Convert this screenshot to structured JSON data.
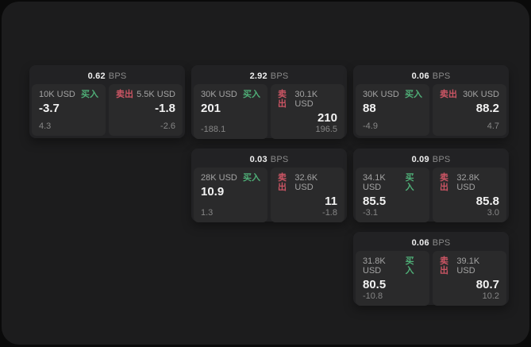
{
  "app": {
    "background": "#0a0a0a",
    "panel_background": "#1c1c1d",
    "card_background": "#222224",
    "tile_background": "#2a2a2b"
  },
  "colors": {
    "buy_green": "#4fae77",
    "sell_red": "#cb5564",
    "price_text": "#f2f2f2",
    "muted_text": "#a3a3a3"
  },
  "labels": {
    "bps_unit": "BPS",
    "buy": "买入",
    "sell": "卖出"
  },
  "cards": [
    {
      "bps": "0.62",
      "buy_amount": "10K USD",
      "buy_price": "-3.7",
      "buy_change": "4.3",
      "sell_amount": "5.5K USD",
      "sell_price": "-1.8",
      "sell_change": "-2.6"
    },
    {
      "bps": "2.92",
      "buy_amount": "30K USD",
      "buy_price": "201",
      "buy_change": "-188.1",
      "sell_amount": "30.1K USD",
      "sell_price": "210",
      "sell_change": "196.5"
    },
    {
      "bps": "0.06",
      "buy_amount": "30K USD",
      "buy_price": "88",
      "buy_change": "-4.9",
      "sell_amount": "30K USD",
      "sell_price": "88.2",
      "sell_change": "4.7"
    },
    {
      "bps": "0.03",
      "buy_amount": "28K USD",
      "buy_price": "10.9",
      "buy_change": "1.3",
      "sell_amount": "32.6K USD",
      "sell_price": "11",
      "sell_change": "-1.8"
    },
    {
      "bps": "0.09",
      "buy_amount": "34.1K USD",
      "buy_price": "85.5",
      "buy_change": "-3.1",
      "sell_amount": "32.8K USD",
      "sell_price": "85.8",
      "sell_change": "3.0"
    },
    {
      "bps": "0.06",
      "buy_amount": "31.8K USD",
      "buy_price": "80.5",
      "buy_change": "-10.8",
      "sell_amount": "39.1K USD",
      "sell_price": "80.7",
      "sell_change": "10.2"
    }
  ]
}
